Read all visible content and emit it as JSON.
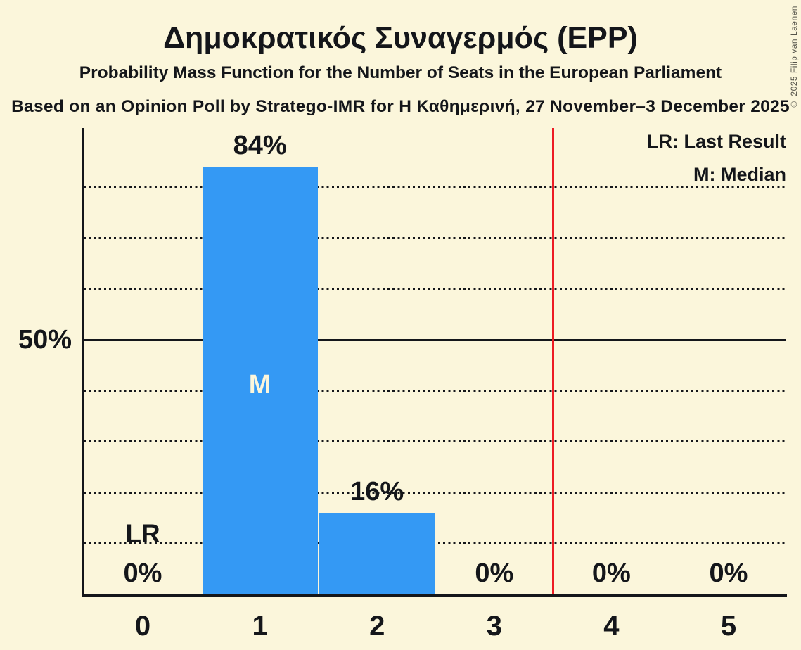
{
  "title": "Δημοκρατικός Συναγερμός (EPP)",
  "subtitle": "Probability Mass Function for the Number of Seats in the European Parliament",
  "source_line": "Based on an Opinion Poll by Stratego-IMR for Η Καθημερινή, 27 November–3 December 2025",
  "copyright": "© 2025 Filip van Laenen",
  "legend": {
    "last_result": "LR: Last Result",
    "median": "M: Median"
  },
  "y_axis_label": "50%",
  "chart_data": {
    "type": "bar",
    "title": "Δημοκρατικός Συναγερμός (EPP)",
    "subtitle": "Probability Mass Function for the Number of Seats in the European Parliament",
    "categories": [
      "0",
      "1",
      "2",
      "3",
      "4",
      "5"
    ],
    "values": [
      0,
      84,
      16,
      0,
      0,
      0
    ],
    "bar_labels": [
      "0%",
      "84%",
      "16%",
      "0%",
      "0%",
      "0%"
    ],
    "xlabel": "",
    "ylabel": "",
    "ylim_pct": [
      0,
      91.5
    ],
    "y_tick_labels": [
      "50%"
    ],
    "gridlines_pct": [
      10,
      20,
      30,
      40,
      50,
      60,
      70,
      80
    ],
    "solid_gridline_pct": 50,
    "grid": "dotted horizontal",
    "legend_position": "top-right",
    "median_marker": {
      "category": "1",
      "label": "M"
    },
    "last_result_marker": {
      "category": "0",
      "label": "LR"
    },
    "red_line_at_category": 3.5
  },
  "colors": {
    "background": "#FBF6DB",
    "bar": "#3499F4",
    "red_line": "#ED1C24",
    "text": "#14161A",
    "median_label_text": "#FBF6DB",
    "copyright_text": "#55544A"
  }
}
